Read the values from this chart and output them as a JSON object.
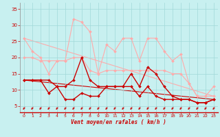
{
  "title": "",
  "xlabel": "Vent moyen/en rafales ( km/h )",
  "bg_color": "#c8f0f0",
  "grid_color": "#a0d8d8",
  "x": [
    0,
    1,
    2,
    3,
    4,
    5,
    6,
    7,
    8,
    9,
    10,
    11,
    12,
    13,
    14,
    15,
    16,
    17,
    18,
    19,
    20,
    21,
    22,
    23
  ],
  "series": [
    {
      "name": "rafales_high",
      "color": "#ffaaaa",
      "lw": 0.8,
      "marker": "D",
      "markersize": 2.0,
      "values": [
        26,
        22,
        20,
        15,
        19,
        19,
        32,
        31,
        28,
        15,
        24,
        22,
        26,
        26,
        19,
        26,
        26,
        22,
        19,
        21,
        12,
        8,
        8,
        11
      ]
    },
    {
      "name": "moyen_high",
      "color": "#ffaaaa",
      "lw": 0.8,
      "marker": "D",
      "markersize": 2.0,
      "values": [
        20,
        20,
        19,
        19,
        19,
        19,
        20,
        20,
        16,
        15,
        16,
        16,
        16,
        16,
        16,
        16,
        16,
        16,
        15,
        15,
        12,
        8,
        8,
        8
      ]
    },
    {
      "name": "rafales_low",
      "color": "#cc0000",
      "lw": 1.0,
      "marker": "D",
      "markersize": 2.0,
      "values": [
        13,
        13,
        13,
        13,
        11,
        11,
        13,
        20,
        13,
        11,
        11,
        11,
        11,
        15,
        11,
        17,
        15,
        11,
        8,
        7,
        7,
        6,
        6,
        7
      ]
    },
    {
      "name": "moyen_low",
      "color": "#cc0000",
      "lw": 1.0,
      "marker": "D",
      "markersize": 2.0,
      "values": [
        13,
        13,
        13,
        9,
        11,
        7,
        7,
        9,
        8,
        8,
        11,
        11,
        11,
        11,
        8,
        11,
        8,
        7,
        7,
        7,
        7,
        6,
        6,
        7
      ]
    },
    {
      "name": "trend_high",
      "color": "#ffaaaa",
      "lw": 0.8,
      "values": [
        26,
        8
      ]
    },
    {
      "name": "trend_low",
      "color": "#cc0000",
      "lw": 0.8,
      "values": [
        13,
        7
      ]
    }
  ],
  "ylim": [
    3,
    37
  ],
  "xlim": [
    -0.5,
    23.5
  ],
  "yticks": [
    5,
    10,
    15,
    20,
    25,
    30,
    35
  ],
  "xticks": [
    0,
    1,
    2,
    3,
    4,
    5,
    6,
    7,
    8,
    9,
    10,
    11,
    12,
    13,
    14,
    15,
    16,
    17,
    18,
    19,
    20,
    21,
    22,
    23
  ],
  "arrow_color": "#cc0000",
  "xlabel_color": "#cc0000",
  "tick_color": "#cc0000",
  "xlabel_fontsize": 5.5,
  "tick_fontsize": 4.5,
  "ytick_fontsize": 5.0
}
